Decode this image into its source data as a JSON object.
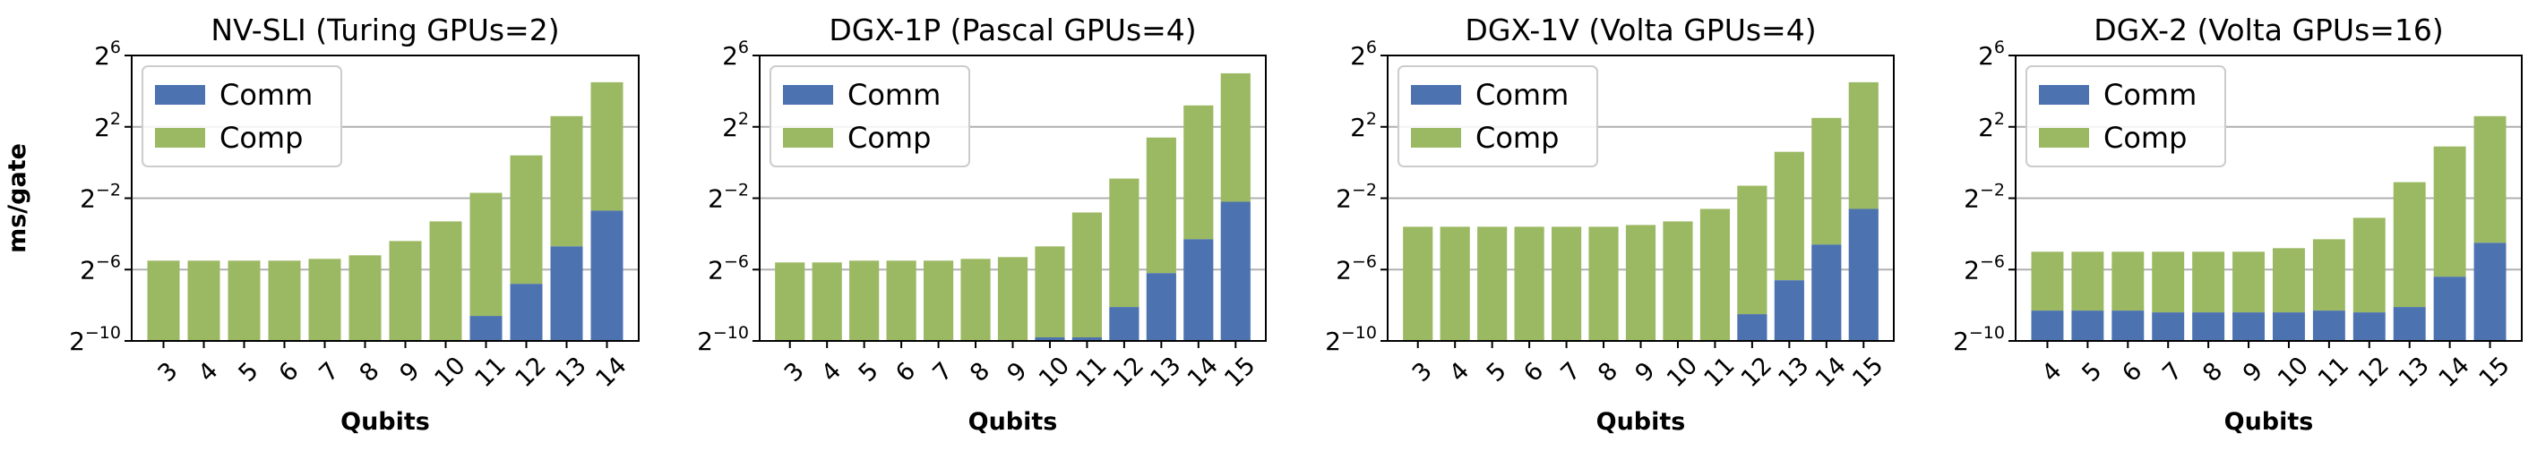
{
  "colors": {
    "comm": "#4c72b0",
    "comp": "#9bb962",
    "grid": "#b0b0b0",
    "axis": "#000000"
  },
  "yticks": [
    {
      "base": "2",
      "exp": "−10",
      "log2": -10
    },
    {
      "base": "2",
      "exp": "−6",
      "log2": -6
    },
    {
      "base": "2",
      "exp": "−2",
      "log2": -2
    },
    {
      "base": "2",
      "exp": "2",
      "log2": 2
    },
    {
      "base": "2",
      "exp": "6",
      "log2": 6
    }
  ],
  "chart_data": [
    {
      "type": "bar",
      "title": "NV-SLI (Turing GPUs=2)",
      "xlabel": "Qubits",
      "ylabel": "ms/gate",
      "yscale": "log2",
      "ylim_log2": [
        -10,
        6
      ],
      "grid": true,
      "legend": {
        "position": "top-left",
        "entries": [
          "Comm",
          "Comp"
        ]
      },
      "categories": [
        "3",
        "4",
        "5",
        "6",
        "7",
        "8",
        "9",
        "10",
        "11",
        "12",
        "13",
        "14"
      ],
      "series": [
        {
          "name": "Comm",
          "values_log2": [
            null,
            null,
            null,
            null,
            null,
            null,
            null,
            null,
            -8.6,
            -6.8,
            -4.7,
            -2.7
          ]
        },
        {
          "name": "Comp",
          "values_log2": [
            -5.5,
            -5.5,
            -5.5,
            -5.5,
            -5.4,
            -5.2,
            -4.4,
            -3.3,
            -1.7,
            0.4,
            2.6,
            4.5
          ]
        }
      ]
    },
    {
      "type": "bar",
      "title": "DGX-1P (Pascal GPUs=4)",
      "xlabel": "Qubits",
      "ylabel": "",
      "yscale": "log2",
      "ylim_log2": [
        -10,
        6
      ],
      "grid": true,
      "legend": {
        "position": "top-left",
        "entries": [
          "Comm",
          "Comp"
        ]
      },
      "categories": [
        "3",
        "4",
        "5",
        "6",
        "7",
        "8",
        "9",
        "10",
        "11",
        "12",
        "13",
        "14",
        "15"
      ],
      "series": [
        {
          "name": "Comm",
          "values_log2": [
            null,
            null,
            null,
            null,
            null,
            null,
            null,
            -9.8,
            -9.8,
            -8.1,
            -6.2,
            -4.3,
            -2.2
          ]
        },
        {
          "name": "Comp",
          "values_log2": [
            -5.6,
            -5.6,
            -5.5,
            -5.5,
            -5.5,
            -5.4,
            -5.3,
            -4.7,
            -2.8,
            -0.9,
            1.4,
            3.2,
            5.0
          ]
        }
      ]
    },
    {
      "type": "bar",
      "title": "DGX-1V (Volta GPUs=4)",
      "xlabel": "Qubits",
      "ylabel": "",
      "yscale": "log2",
      "ylim_log2": [
        -10,
        6
      ],
      "grid": true,
      "legend": {
        "position": "top-left",
        "entries": [
          "Comm",
          "Comp"
        ]
      },
      "categories": [
        "3",
        "4",
        "5",
        "6",
        "7",
        "8",
        "9",
        "10",
        "11",
        "12",
        "13",
        "14",
        "15"
      ],
      "series": [
        {
          "name": "Comm",
          "values_log2": [
            null,
            null,
            null,
            null,
            null,
            null,
            null,
            null,
            null,
            -8.5,
            -6.6,
            -4.6,
            -2.6
          ]
        },
        {
          "name": "Comp",
          "values_log2": [
            -3.6,
            -3.6,
            -3.6,
            -3.6,
            -3.6,
            -3.6,
            -3.5,
            -3.3,
            -2.6,
            -1.3,
            0.6,
            2.5,
            4.5
          ]
        }
      ]
    },
    {
      "type": "bar",
      "title": "DGX-2 (Volta GPUs=16)",
      "xlabel": "Qubits",
      "ylabel": "",
      "yscale": "log2",
      "ylim_log2": [
        -10,
        6
      ],
      "grid": true,
      "legend": {
        "position": "top-left",
        "entries": [
          "Comm",
          "Comp"
        ]
      },
      "categories": [
        "4",
        "5",
        "6",
        "7",
        "8",
        "9",
        "10",
        "11",
        "12",
        "13",
        "14",
        "15"
      ],
      "series": [
        {
          "name": "Comm",
          "values_log2": [
            -8.3,
            -8.3,
            -8.3,
            -8.4,
            -8.4,
            -8.4,
            -8.4,
            -8.3,
            -8.4,
            -8.1,
            -6.4,
            -4.5
          ]
        },
        {
          "name": "Comp",
          "values_log2": [
            -5.0,
            -5.0,
            -5.0,
            -5.0,
            -5.0,
            -5.0,
            -4.8,
            -4.3,
            -3.1,
            -1.1,
            0.9,
            2.6
          ]
        }
      ]
    }
  ]
}
